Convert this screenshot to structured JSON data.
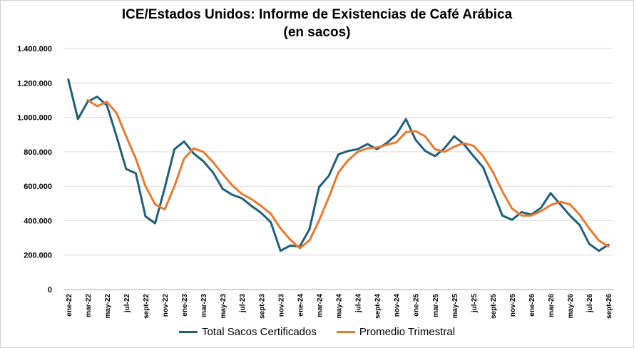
{
  "chart_data": {
    "type": "line",
    "title": "ICE/Estados Unidos: Informe de Existencias de Café Arábica",
    "subtitle": "(en sacos)",
    "xlabel": "",
    "ylabel": "",
    "ylim": [
      0,
      1400000
    ],
    "yticks": [
      0,
      200000,
      400000,
      600000,
      800000,
      1000000,
      1200000,
      1400000
    ],
    "ytick_labels": [
      "0",
      "200.000",
      "400.000",
      "600.000",
      "800.000",
      "1.000.000",
      "1.200.000",
      "1.400.000"
    ],
    "grid": true,
    "legend_position": "bottom",
    "x": [
      "ene-22",
      "feb-22",
      "mar-22",
      "abr-22",
      "may-22",
      "jun-22",
      "jul-22",
      "ago-22",
      "sept-22",
      "oct-22",
      "nov-22",
      "dic-22",
      "ene-23",
      "feb-23",
      "mar-23",
      "abr-23",
      "may-23",
      "jun-23",
      "jul-23",
      "ago-23",
      "sept-23",
      "oct-23",
      "nov-23",
      "dic-23",
      "ene-24",
      "feb-24",
      "mar-24",
      "abr-24",
      "may-24",
      "jun-24",
      "jul-24",
      "ago-24",
      "sept-24",
      "oct-24",
      "nov-24",
      "dic-24",
      "ene-25",
      "feb-25",
      "mar-25",
      "abr-25",
      "may-25",
      "jun-25",
      "jul-25",
      "ago-25",
      "sept-25",
      "oct-25",
      "nov-25",
      "dic-25",
      "ene-26",
      "feb-26",
      "mar-26",
      "abr-26",
      "may-26",
      "jun-26",
      "jul-26",
      "ago-26",
      "sept-26"
    ],
    "x_tick_labels": [
      "ene-22",
      "mar-22",
      "may-22",
      "jul-22",
      "sept-22",
      "nov-22",
      "ene-23",
      "mar-23",
      "may-23",
      "jul-23",
      "sept-23",
      "nov-23",
      "ene-24",
      "mar-24",
      "may-24",
      "jul-24",
      "sept-24",
      "nov-24",
      "ene-25",
      "mar-25",
      "may-25",
      "jul-25",
      "sept-25",
      "nov-25",
      "ene-26",
      "mar-26",
      "may-26",
      "jul-26",
      "sept-26"
    ],
    "series": [
      {
        "name": "Total Sacos Certificados",
        "color": "#1f5f7a",
        "values": [
          1220000,
          990000,
          1090000,
          1120000,
          1070000,
          890000,
          700000,
          675000,
          425000,
          385000,
          590000,
          815000,
          860000,
          790000,
          745000,
          680000,
          585000,
          550000,
          530000,
          485000,
          445000,
          390000,
          225000,
          255000,
          250000,
          350000,
          595000,
          660000,
          785000,
          805000,
          815000,
          845000,
          815000,
          850000,
          900000,
          990000,
          870000,
          805000,
          775000,
          820000,
          890000,
          845000,
          775000,
          710000,
          570000,
          430000,
          405000,
          450000,
          435000,
          475000,
          560000,
          495000,
          430000,
          375000,
          265000,
          225000,
          260000
        ]
      },
      {
        "name": "Promedio Trimestral",
        "color": "#e87a2e",
        "values": [
          null,
          null,
          1100000,
          1065000,
          1090000,
          1025000,
          890000,
          760000,
          600000,
          495000,
          465000,
          600000,
          760000,
          820000,
          800000,
          740000,
          670000,
          605000,
          555000,
          525000,
          485000,
          440000,
          355000,
          290000,
          240000,
          285000,
          400000,
          535000,
          680000,
          750000,
          800000,
          820000,
          825000,
          840000,
          855000,
          915000,
          920000,
          890000,
          815000,
          800000,
          830000,
          850000,
          835000,
          775000,
          685000,
          570000,
          470000,
          430000,
          430000,
          455000,
          490000,
          510000,
          495000,
          435000,
          355000,
          285000,
          250000
        ]
      }
    ]
  }
}
